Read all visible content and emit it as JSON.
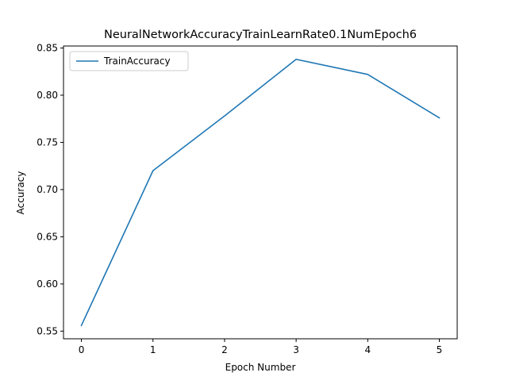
{
  "chart_data": {
    "type": "line",
    "title": "NeuralNetworkAccuracyTrainLearnRate0.1NumEpoch6",
    "xlabel": "Epoch Number",
    "ylabel": "Accuracy",
    "x": [
      0,
      1,
      2,
      3,
      4,
      5
    ],
    "series": [
      {
        "name": "TrainAccuracy",
        "values": [
          0.556,
          0.72,
          0.778,
          0.838,
          0.822,
          0.776
        ],
        "color": "#1f77b4"
      }
    ],
    "xlim": [
      -0.25,
      5.25
    ],
    "ylim": [
      0.5419,
      0.8521
    ],
    "xticks": [
      0,
      1,
      2,
      3,
      4,
      5
    ],
    "xtick_labels": [
      "0",
      "1",
      "2",
      "3",
      "4",
      "5"
    ],
    "yticks": [
      0.55,
      0.6,
      0.65,
      0.7,
      0.75,
      0.8,
      0.85
    ],
    "ytick_labels": [
      "0.55",
      "0.60",
      "0.65",
      "0.70",
      "0.75",
      "0.80",
      "0.85"
    ],
    "grid": false,
    "legend_position": "upper left"
  }
}
